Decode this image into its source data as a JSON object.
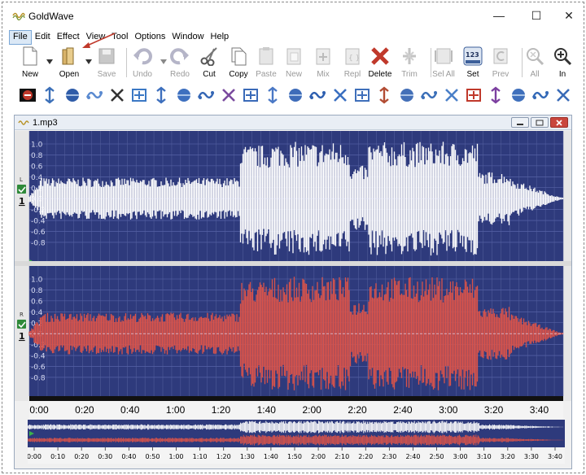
{
  "app": {
    "title": "GoldWave",
    "icon": "goldwave-logo-icon"
  },
  "window_controls": {
    "minimize": "—",
    "maximize": "☐",
    "close": "✕"
  },
  "menu": [
    "File",
    "Edit",
    "Effect",
    "View",
    "Tool",
    "Options",
    "Window",
    "Help"
  ],
  "toolbar": {
    "new": "New",
    "open": "Open",
    "save": "Save",
    "undo": "Undo",
    "redo": "Redo",
    "cut": "Cut",
    "copy": "Copy",
    "paste": "Paste",
    "paste_new": "New",
    "mix": "Mix",
    "replace": "Repl",
    "delete": "Delete",
    "trim": "Trim",
    "select_all": "Sel All",
    "set": "Set",
    "set_badge": "123",
    "previous": "Prev",
    "zoom_all": "All",
    "zoom_in": "In"
  },
  "effects_toolbar": [
    "stop-sign-icon",
    "vertical-arrows-icon",
    "sphere-icon",
    "node-link-icon",
    "x-cross-icon",
    "wave-arrow-icon",
    "spiral-icon",
    "loop-arrow-icon",
    "gear-burst-icon",
    "octagon-icon",
    "grid-spectrum-icon",
    "equalizer-icon",
    "arrow-right-icon",
    "arrow-left-icon",
    "double-arrow-icon",
    "sliders-icon",
    "compressor-icon",
    "fan-icon",
    "stereo-icon",
    "fork-icon",
    "cut-bar-icon",
    "color-bars-icon",
    "pan-icon",
    "speaker-icon",
    "speaker-bars-icon"
  ],
  "document": {
    "name": "1.mp3",
    "left_channel": {
      "label": "L",
      "number": "1",
      "color": "#ffffff"
    },
    "right_channel": {
      "label": "R",
      "number": "1",
      "color": "#d9534a"
    },
    "background": "#2e3a7c",
    "left_ticks": [
      "1.0",
      "0.8",
      "0.6",
      "0.4",
      "0.2",
      "0.0",
      "-0.2",
      "-0.4",
      "-0.6",
      "-0.8"
    ],
    "right_ticks": [
      "1.0",
      "0.8",
      "0.6",
      "0.4",
      "0.2",
      "0.0",
      "-0.2",
      "-0.4",
      "-0.6",
      "-0.8"
    ],
    "timeline": [
      "0:00",
      "0:20",
      "0:40",
      "1:00",
      "1:20",
      "1:40",
      "2:00",
      "2:20",
      "2:40",
      "3:00",
      "3:20",
      "3:40"
    ],
    "overview_timeline": [
      "0:00",
      "0:10",
      "0:20",
      "0:30",
      "0:40",
      "0:50",
      "1:00",
      "1:10",
      "1:20",
      "1:30",
      "1:40",
      "1:50",
      "2:00",
      "2:10",
      "2:20",
      "2:30",
      "2:40",
      "2:50",
      "3:00",
      "3:10",
      "3:20",
      "3:30",
      "3:40"
    ]
  },
  "colors": {
    "accent_red": "#c0392b",
    "menu_highlight": "#dbe8f6"
  }
}
